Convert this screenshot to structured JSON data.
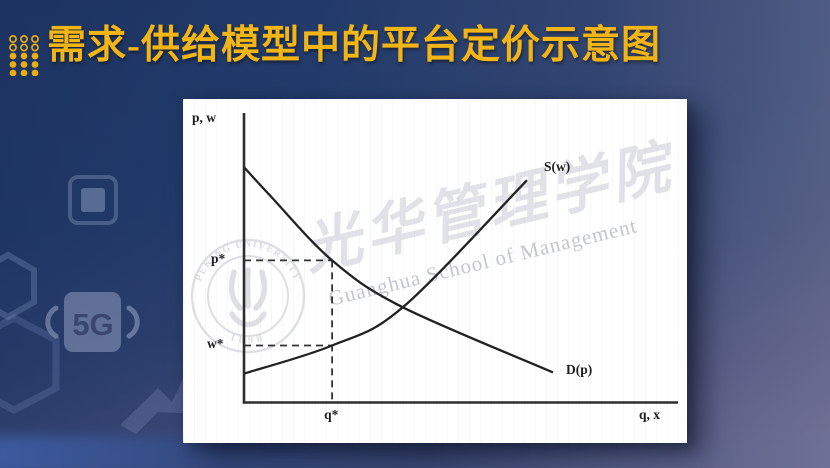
{
  "slide": {
    "title": "需求-供给模型中的平台定价示意图",
    "background_badge": "5G"
  },
  "watermarks": {
    "seal_top_text": "PEKING UNIVERSITY",
    "seal_year": "1898",
    "script_cn": "光华管理学院",
    "script_en": "Guanghua School of Management"
  },
  "chart": {
    "ylabel": "p, w",
    "xlabel": "q, x",
    "label_supply": "S(w)",
    "label_demand": "D(p)",
    "label_p_star": "p*",
    "label_w_star": "w*",
    "label_q_star": "q*"
  },
  "colors": {
    "title_gold": "#F2B514",
    "background_navy": "#223A69",
    "panel_white": "#FFFFFF",
    "curve_black": "#222222",
    "guide_dash": "#333333",
    "watermark_gray": "#C9CCD4"
  },
  "chart_data": {
    "type": "line",
    "title": "需求-供给模型中的平台定价示意图",
    "xlabel": "q, x",
    "ylabel": "p, w",
    "axes_numeric": false,
    "x_range_norm": [
      0,
      1
    ],
    "y_range_norm": [
      0,
      1
    ],
    "grid": false,
    "legend": false,
    "series": [
      {
        "name": "D(p)",
        "role": "demand",
        "shape": "convex decreasing curve",
        "points_norm": [
          [
            0.0,
            0.813
          ],
          [
            0.06,
            0.715
          ],
          [
            0.203,
            0.491
          ],
          [
            0.366,
            0.329
          ],
          [
            0.712,
            0.104
          ]
        ]
      },
      {
        "name": "S(w)",
        "role": "supply",
        "shape": "convex increasing curve",
        "points_norm": [
          [
            0.0,
            0.1
          ],
          [
            0.203,
            0.197
          ],
          [
            0.366,
            0.329
          ],
          [
            0.652,
            0.768
          ]
        ]
      }
    ],
    "equilibrium": {
      "q_star_x_norm": 0.203,
      "p_star_y_norm": 0.491,
      "w_star_y_norm": 0.197,
      "curves_intersection_norm": [
        0.366,
        0.329
      ],
      "note": "dashed guides mark p* and w* on the price axis and q* on the quantity axis; demand passes through (q*, p*), supply through (q*, w*)"
    }
  }
}
